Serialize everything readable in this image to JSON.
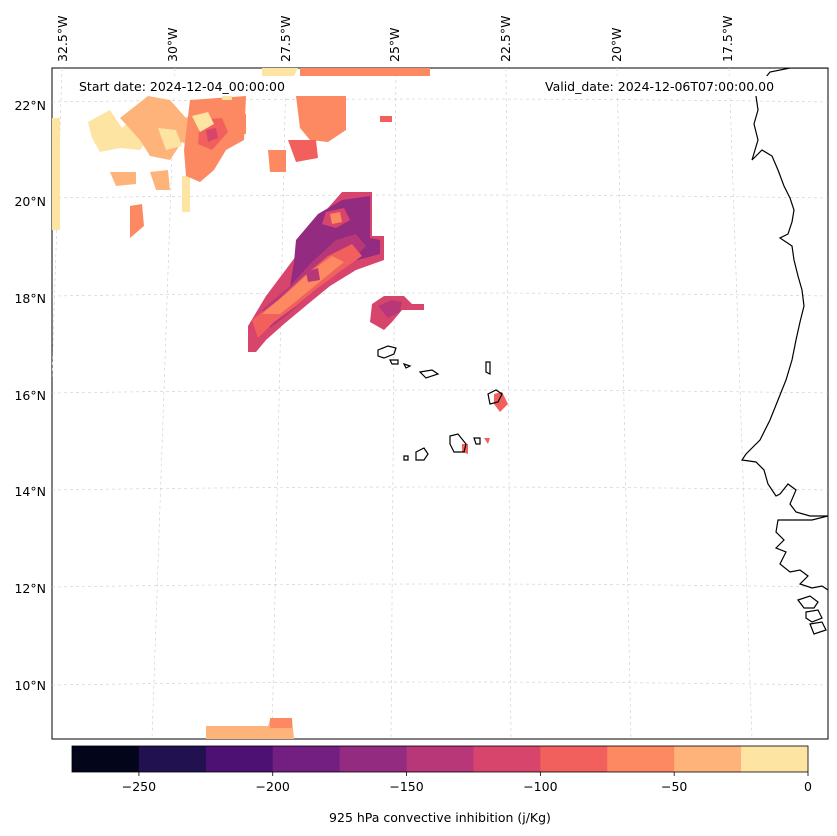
{
  "header": {
    "start_date": "Start date: 2024-12-04_00:00:00",
    "valid_date": "Valid_date: 2024-12-06T07:00:00.00"
  },
  "map": {
    "lon_labels": [
      "32.5°W",
      "30°W",
      "27.5°W",
      "25°W",
      "22.5°W",
      "20°W",
      "17.5°W"
    ],
    "lat_labels": [
      "22°N",
      "20°N",
      "18°N",
      "16°N",
      "14°N",
      "12°N",
      "10°N"
    ]
  },
  "colorbar": {
    "label": "925 hPa convective inhibition (j/Kg)",
    "ticks": [
      "−250",
      "−200",
      "−150",
      "−100",
      "−50",
      "0"
    ],
    "range": [
      -275,
      0
    ],
    "colors": [
      "#03051a",
      "#221150",
      "#4c1172",
      "#721f81",
      "#932b80",
      "#b73779",
      "#d8456c",
      "#f1605d",
      "#fc8961",
      "#feb37b",
      "#fde4a3"
    ]
  }
}
